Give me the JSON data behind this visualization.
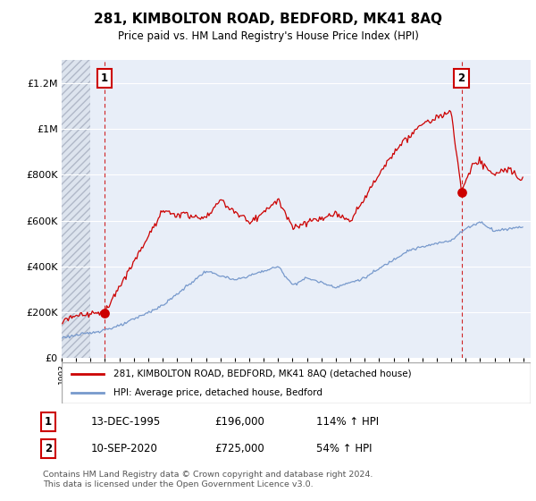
{
  "title": "281, KIMBOLTON ROAD, BEDFORD, MK41 8AQ",
  "subtitle": "Price paid vs. HM Land Registry's House Price Index (HPI)",
  "background_color": "#ffffff",
  "plot_bg_color": "#e8eef8",
  "hatch_bg_color": "#d8d8d8",
  "grid_color": "#ffffff",
  "red_line_color": "#cc0000",
  "blue_line_color": "#7799cc",
  "point1_x": 1995.96,
  "point1_y": 196000,
  "point2_x": 2020.71,
  "point2_y": 725000,
  "legend_entry1": "281, KIMBOLTON ROAD, BEDFORD, MK41 8AQ (detached house)",
  "legend_entry2": "HPI: Average price, detached house, Bedford",
  "table_row1": [
    "1",
    "13-DEC-1995",
    "£196,000",
    "114% ↑ HPI"
  ],
  "table_row2": [
    "2",
    "10-SEP-2020",
    "£725,000",
    "54% ↑ HPI"
  ],
  "footnote": "Contains HM Land Registry data © Crown copyright and database right 2024.\nThis data is licensed under the Open Government Licence v3.0.",
  "ylim": [
    0,
    1300000
  ],
  "yticks": [
    0,
    200000,
    400000,
    600000,
    800000,
    1000000,
    1200000
  ],
  "ytick_labels": [
    "£0",
    "£200K",
    "£400K",
    "£600K",
    "£800K",
    "£1M",
    "£1.2M"
  ],
  "xlim_min": 1993.0,
  "xlim_max": 2025.5,
  "hatch_end_x": 1995.0
}
